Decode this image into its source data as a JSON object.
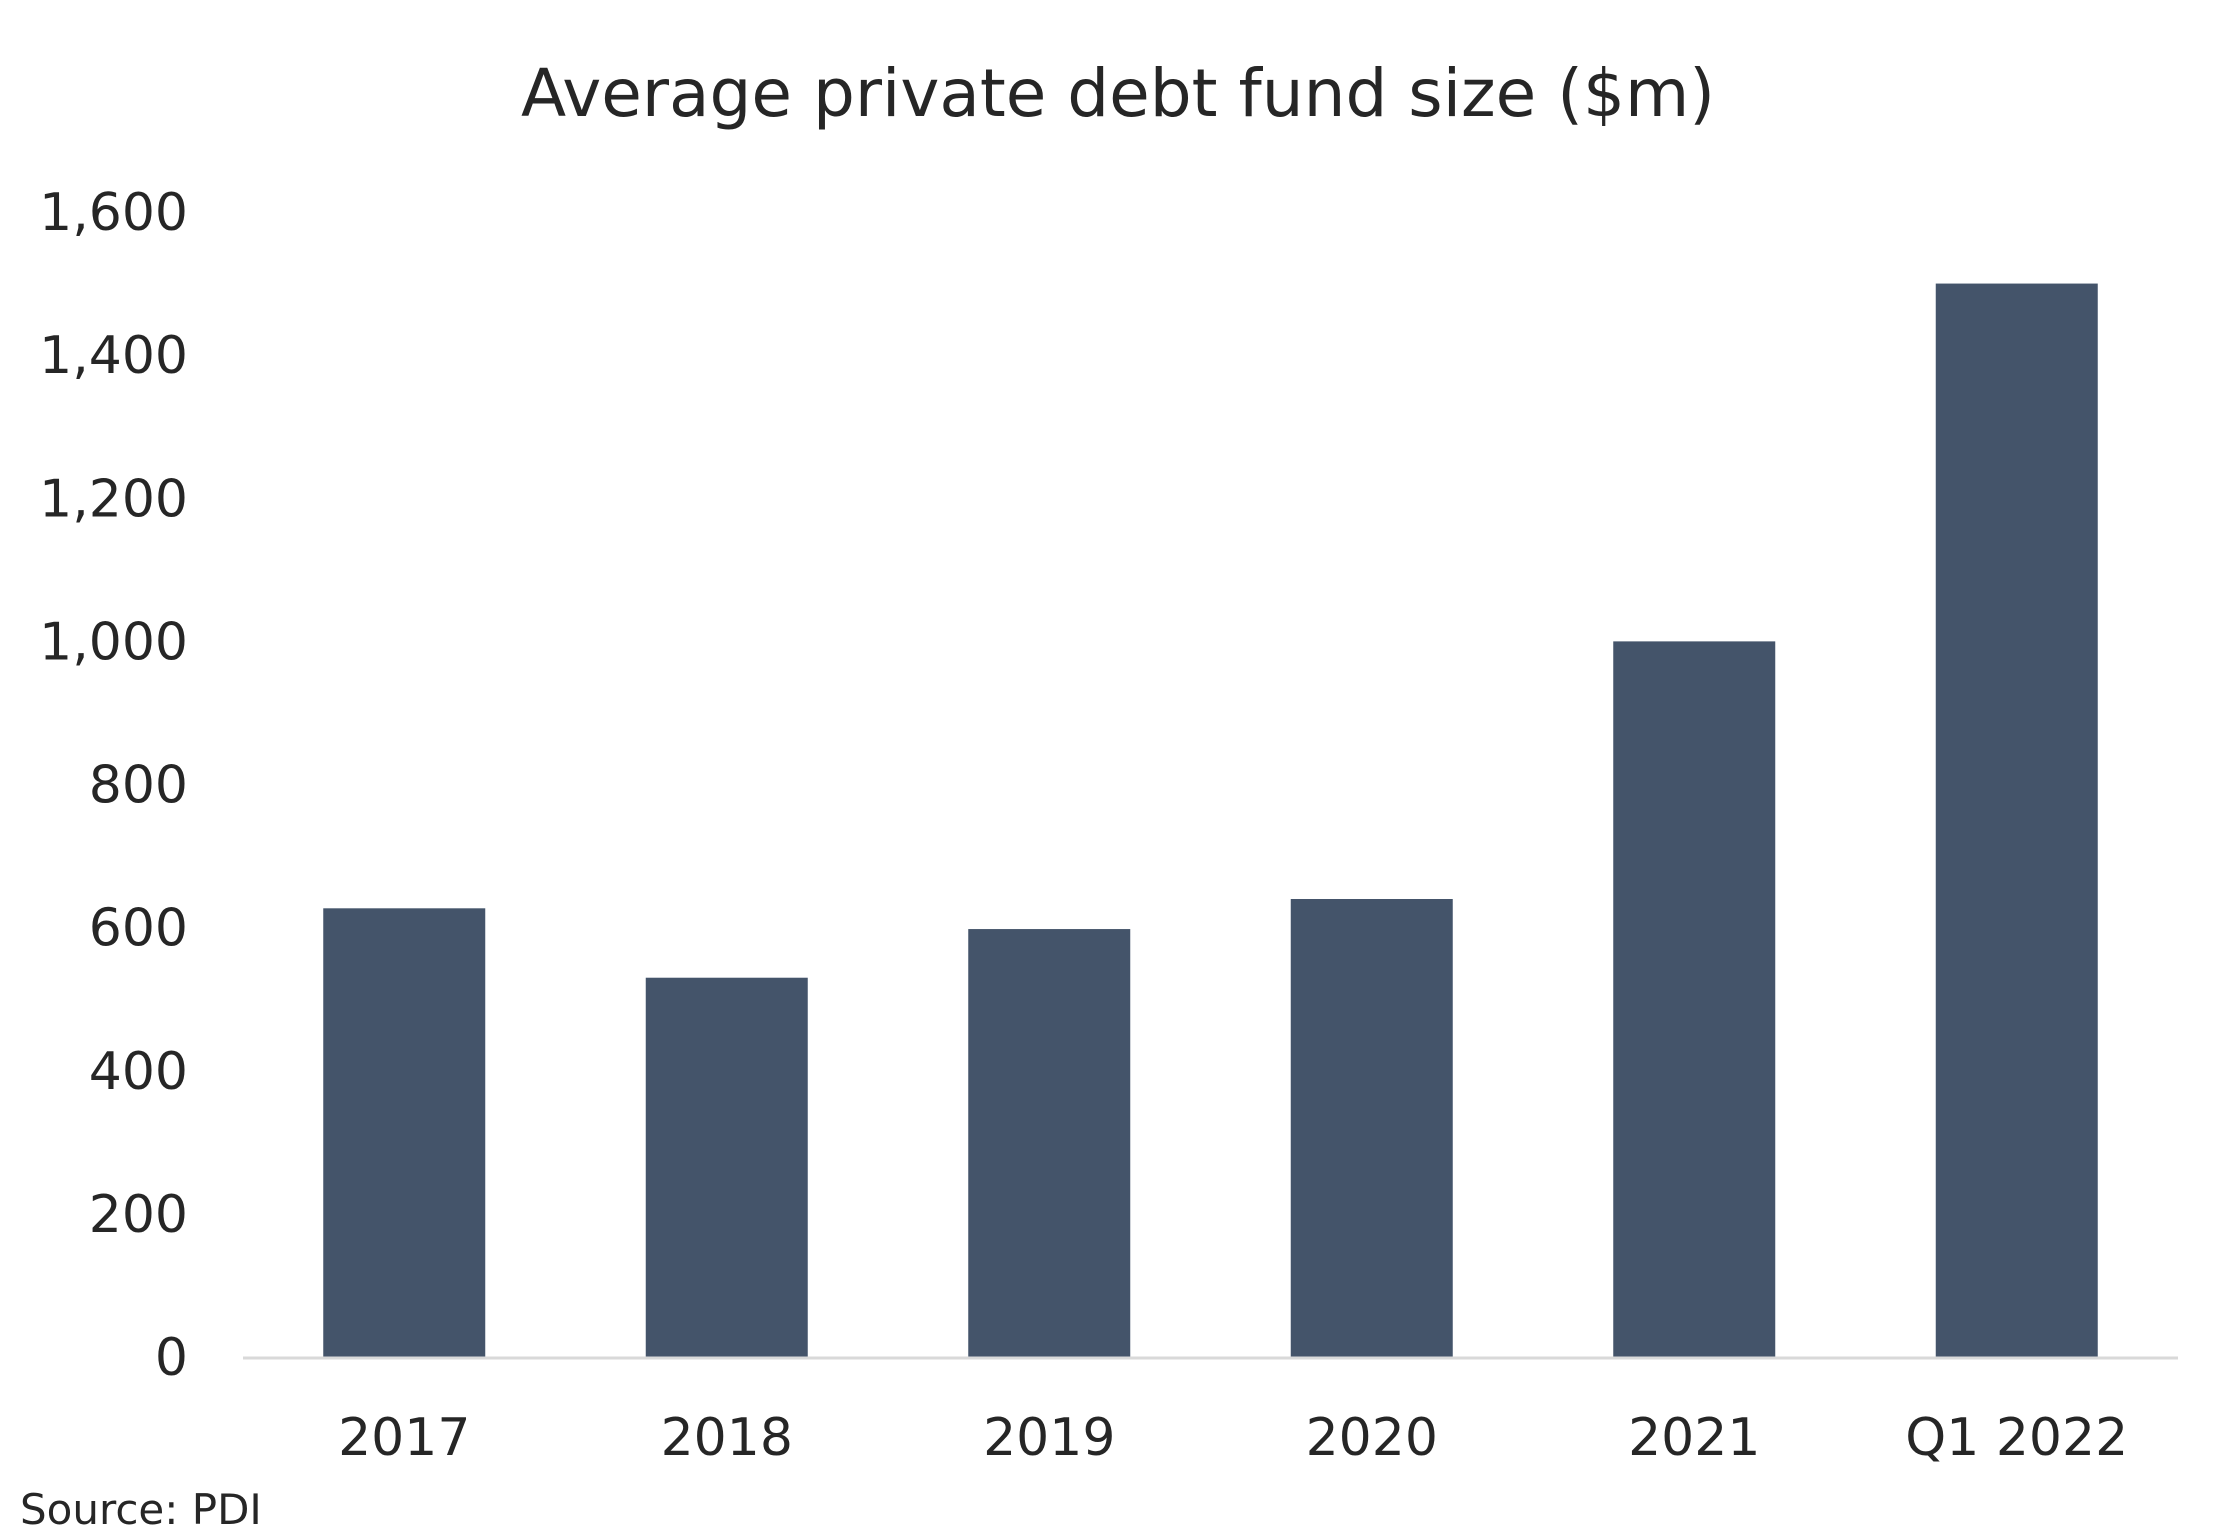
{
  "colors": {
    "bar": "#44546a",
    "axis_line": "#d9d9d9",
    "text": "#262626",
    "background": "#ffffff"
  },
  "source": "Source: PDI",
  "chart_data": {
    "type": "bar",
    "title": "Average private debt fund size ($m)",
    "xlabel": "",
    "ylabel": "",
    "categories": [
      "2017",
      "2018",
      "2019",
      "2020",
      "2021",
      "Q1 2022"
    ],
    "values": [
      627,
      530,
      598,
      640,
      1000,
      1500
    ],
    "ylim": [
      0,
      1600
    ],
    "y_ticks": [
      0,
      200,
      400,
      600,
      800,
      1000,
      1200,
      1400,
      1600
    ],
    "y_tick_labels": [
      "0",
      "200",
      "400",
      "600",
      "800",
      "1,000",
      "1,200",
      "1,400",
      "1,600"
    ],
    "grid": false,
    "legend": "none"
  }
}
